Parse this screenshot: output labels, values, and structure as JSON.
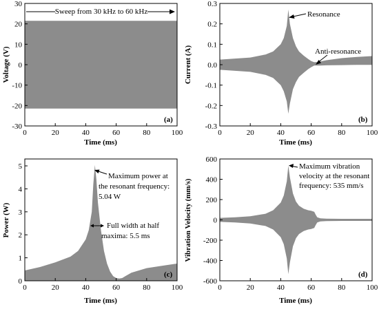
{
  "colors": {
    "fill": "#8c8c8c",
    "axis": "#000000",
    "background": "#ffffff"
  },
  "chart_data": [
    {
      "panel": "(a)",
      "type": "area",
      "xlabel": "Time (ms)",
      "ylabel": "Voltage (V)",
      "xlim": [
        0,
        100
      ],
      "ylim": [
        -30,
        30
      ],
      "xticks": [
        0,
        20,
        40,
        60,
        80,
        100
      ],
      "yticks": [
        -30,
        -20,
        -10,
        0,
        10,
        20,
        30
      ],
      "annotation": "Sweep from 30 kHz to 60 kHz",
      "envelope": {
        "x": [
          0,
          100
        ],
        "upper": [
          21.5,
          21.5
        ],
        "lower": [
          -21.5,
          -21.5
        ]
      }
    },
    {
      "panel": "(b)",
      "type": "area",
      "xlabel": "Time (ms)",
      "ylabel": "Current (A)",
      "xlim": [
        0,
        100
      ],
      "ylim": [
        -0.3,
        0.3
      ],
      "xticks": [
        0,
        20,
        40,
        60,
        80,
        100
      ],
      "yticks": [
        -0.3,
        -0.2,
        -0.1,
        0.0,
        0.1,
        0.2,
        0.3
      ],
      "annotations": [
        "Resonance",
        "Anti-resonance"
      ],
      "envelope": {
        "x": [
          0,
          10,
          20,
          30,
          35,
          40,
          42,
          44,
          45,
          46,
          48,
          50,
          52,
          55,
          58,
          60,
          62,
          64,
          66,
          70,
          80,
          90,
          100
        ],
        "upper": [
          0.025,
          0.03,
          0.035,
          0.05,
          0.065,
          0.1,
          0.13,
          0.19,
          0.27,
          0.2,
          0.13,
          0.09,
          0.065,
          0.045,
          0.028,
          0.018,
          0.012,
          0.013,
          0.016,
          0.022,
          0.032,
          0.038,
          0.042
        ],
        "lower": [
          -0.025,
          -0.03,
          -0.035,
          -0.05,
          -0.065,
          -0.1,
          -0.13,
          -0.18,
          -0.24,
          -0.19,
          -0.12,
          -0.085,
          -0.06,
          -0.04,
          -0.022,
          -0.012,
          -0.004,
          -0.004,
          -0.004,
          -0.003,
          -0.002,
          -0.001,
          -0.001
        ]
      }
    },
    {
      "panel": "(c)",
      "type": "area",
      "xlabel": "Time (ms)",
      "ylabel": "Power (W)",
      "xlim": [
        0,
        100
      ],
      "ylim": [
        0,
        5.3
      ],
      "xticks": [
        0,
        20,
        40,
        60,
        80,
        100
      ],
      "yticks": [
        0,
        1,
        2,
        3,
        4,
        5
      ],
      "annotations": [
        "Maximum power at",
        "the resonant frequency:",
        "5.04 W",
        "Full width at half",
        "maxima: 5.5 ms"
      ],
      "envelope": {
        "x": [
          0,
          10,
          20,
          30,
          35,
          40,
          42,
          44,
          45,
          46,
          47,
          48,
          50,
          52,
          54,
          56,
          58,
          60,
          62,
          64,
          66,
          70,
          80,
          90,
          100
        ],
        "upper": [
          0.45,
          0.6,
          0.8,
          1.05,
          1.3,
          1.8,
          2.2,
          3.0,
          4.2,
          5.04,
          4.4,
          3.4,
          2.2,
          1.3,
          0.75,
          0.4,
          0.2,
          0.12,
          0.1,
          0.12,
          0.2,
          0.35,
          0.55,
          0.65,
          0.75
        ],
        "lower": [
          0,
          0,
          0,
          0,
          0,
          0,
          0,
          0,
          0,
          0,
          0,
          0,
          0,
          0,
          0,
          0,
          0,
          0,
          0,
          0,
          0,
          0,
          0,
          0,
          0
        ]
      }
    },
    {
      "panel": "(d)",
      "type": "area",
      "xlabel": "Time (ms)",
      "ylabel": "Vibration Velocity (mm/s)",
      "xlim": [
        0,
        100
      ],
      "ylim": [
        -600,
        600
      ],
      "xticks": [
        0,
        20,
        40,
        60,
        80,
        100
      ],
      "yticks": [
        -600,
        -400,
        -200,
        0,
        200,
        400,
        600
      ],
      "annotations": [
        "Maximum vibration",
        "velocity at the resonant",
        "frequency: 535 mm/s"
      ],
      "envelope": {
        "x": [
          0,
          10,
          20,
          30,
          35,
          40,
          42,
          44,
          45,
          46,
          48,
          50,
          52,
          55,
          58,
          60,
          62,
          63,
          64,
          66,
          70,
          80,
          90,
          100
        ],
        "upper": [
          20,
          25,
          35,
          60,
          95,
          170,
          240,
          380,
          535,
          420,
          260,
          180,
          140,
          110,
          95,
          90,
          80,
          50,
          25,
          15,
          12,
          10,
          10,
          10
        ],
        "lower": [
          -20,
          -25,
          -35,
          -60,
          -95,
          -170,
          -240,
          -380,
          -535,
          -420,
          -260,
          -180,
          -140,
          -110,
          -95,
          -90,
          -80,
          -50,
          -25,
          -15,
          -12,
          -10,
          -10,
          -10
        ]
      }
    }
  ]
}
